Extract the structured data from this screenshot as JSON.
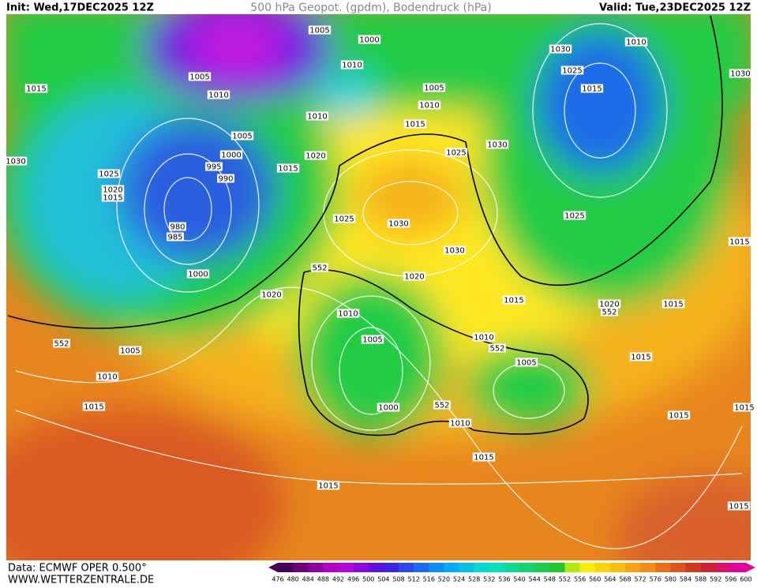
{
  "header": {
    "init": "Init: Wed,17DEC2025 12Z",
    "title": "500 hPa Geopot. (gpdm), Bodendruck (hPa)",
    "valid": "Valid: Tue,23DEC2025 12Z"
  },
  "footer": {
    "source": "Data: ECMWF OPER 0.500°",
    "website": "WWW.WETTERZENTRALE.DE"
  },
  "colorbar": {
    "levels": [
      476,
      480,
      484,
      488,
      492,
      496,
      500,
      504,
      508,
      512,
      516,
      520,
      524,
      528,
      532,
      536,
      540,
      544,
      548,
      552,
      556,
      560,
      564,
      568,
      572,
      576,
      580,
      584,
      588,
      592,
      596,
      600
    ]
  },
  "contour_labels": [
    1005,
    1000,
    1010,
    1005,
    1010,
    1015,
    1005,
    1010,
    1010,
    1015,
    1005,
    1000,
    995,
    990,
    1020,
    1015,
    1025,
    1030,
    1025,
    1020,
    1015,
    1030,
    980,
    985,
    1025,
    1030,
    1030,
    1025,
    1030,
    1010,
    1025,
    1015,
    1030,
    1015,
    552,
    1020,
    1000,
    1020,
    1015,
    1020,
    552,
    1015,
    1010,
    1005,
    552,
    1005,
    1010,
    552,
    1005,
    1015,
    1010,
    1015,
    1000,
    552,
    1010,
    1015,
    1015,
    1015,
    1015,
    1015
  ]
}
